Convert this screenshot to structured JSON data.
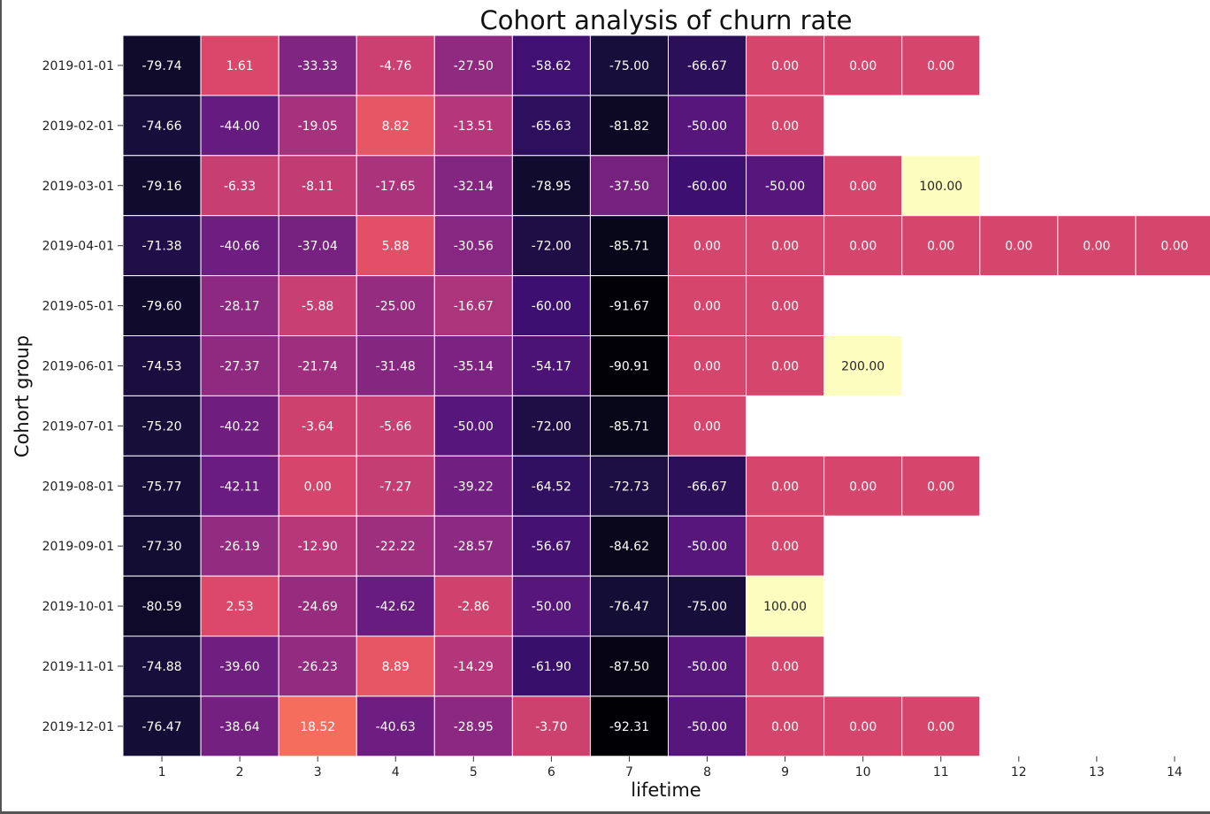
{
  "chart_data": {
    "type": "heatmap",
    "title": "Cohort analysis of churn rate",
    "xlabel": "lifetime",
    "ylabel": "Cohort group",
    "colormap": "magma",
    "color_range": [
      -92.31,
      200.0
    ],
    "x_categories": [
      "1",
      "2",
      "3",
      "4",
      "5",
      "6",
      "7",
      "8",
      "9",
      "10",
      "11",
      "12",
      "13",
      "14"
    ],
    "y_categories": [
      "2019-01-01",
      "2019-02-01",
      "2019-03-01",
      "2019-04-01",
      "2019-05-01",
      "2019-06-01",
      "2019-07-01",
      "2019-08-01",
      "2019-09-01",
      "2019-10-01",
      "2019-11-01",
      "2019-12-01"
    ],
    "values": [
      [
        -79.74,
        1.61,
        -33.33,
        -4.76,
        -27.5,
        -58.62,
        -75.0,
        -66.67,
        0.0,
        0.0,
        0.0,
        null,
        null,
        null
      ],
      [
        -74.66,
        -44.0,
        -19.05,
        8.82,
        -13.51,
        -65.63,
        -81.82,
        -50.0,
        0.0,
        null,
        null,
        null,
        null,
        null
      ],
      [
        -79.16,
        -6.33,
        -8.11,
        -17.65,
        -32.14,
        -78.95,
        -37.5,
        -60.0,
        -50.0,
        0.0,
        100.0,
        null,
        null,
        null
      ],
      [
        -71.38,
        -40.66,
        -37.04,
        5.88,
        -30.56,
        -72.0,
        -85.71,
        0.0,
        0.0,
        0.0,
        0.0,
        0.0,
        0.0,
        0.0
      ],
      [
        -79.6,
        -28.17,
        -5.88,
        -25.0,
        -16.67,
        -60.0,
        -91.67,
        0.0,
        0.0,
        null,
        null,
        null,
        null,
        null
      ],
      [
        -74.53,
        -27.37,
        -21.74,
        -31.48,
        -35.14,
        -54.17,
        -90.91,
        0.0,
        0.0,
        200.0,
        null,
        null,
        null,
        null
      ],
      [
        -75.2,
        -40.22,
        -3.64,
        -5.66,
        -50.0,
        -72.0,
        -85.71,
        0.0,
        null,
        null,
        null,
        null,
        null,
        null
      ],
      [
        -75.77,
        -42.11,
        0.0,
        -7.27,
        -39.22,
        -64.52,
        -72.73,
        -66.67,
        0.0,
        0.0,
        0.0,
        null,
        null,
        null
      ],
      [
        -77.3,
        -26.19,
        -12.9,
        -22.22,
        -28.57,
        -56.67,
        -84.62,
        -50.0,
        0.0,
        null,
        null,
        null,
        null,
        null
      ],
      [
        -80.59,
        2.53,
        -24.69,
        -42.62,
        -2.86,
        -50.0,
        -76.47,
        -75.0,
        100.0,
        null,
        null,
        null,
        null,
        null
      ],
      [
        -74.88,
        -39.6,
        -26.23,
        8.89,
        -14.29,
        -61.9,
        -87.5,
        -50.0,
        0.0,
        null,
        null,
        null,
        null,
        null
      ],
      [
        -76.47,
        -38.64,
        18.52,
        -40.63,
        -28.95,
        -3.7,
        -92.31,
        -50.0,
        0.0,
        0.0,
        0.0,
        null,
        null,
        null
      ]
    ]
  }
}
